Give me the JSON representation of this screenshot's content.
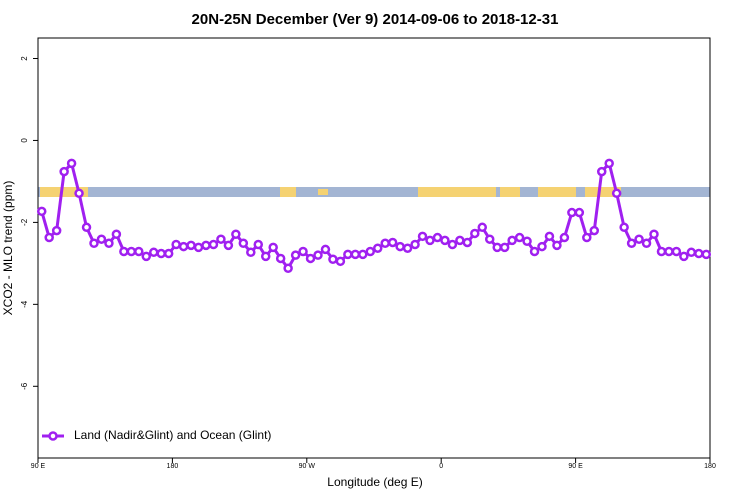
{
  "chart_data": {
    "type": "line",
    "title": "20N-25N December (Ver 9)   2014-09-06 to 2018-12-31",
    "x_label": "Longitude (deg E)",
    "y_label": "XCO2 - MLO trend (ppm)",
    "xlim": [
      90,
      540
    ],
    "xticks": [
      {
        "value": 90,
        "label": "90 E"
      },
      180,
      {
        "value": 270,
        "label": "90 W"
      },
      {
        "value": 360,
        "label": "0"
      },
      {
        "value": 450,
        "label": "90 E"
      },
      180
    ],
    "ylim": [
      -7.75,
      2.5
    ],
    "yticks": [
      2,
      0,
      -2,
      -4,
      -6
    ],
    "legend_position": "bottom-left",
    "series": [
      {
        "name": "Land (Nadir&Glint) and Ocean (Glint)",
        "color": "#a020f0",
        "x": [
          92.5,
          97.5,
          102.5,
          107.5,
          112.5,
          117.5,
          122.5,
          127.5,
          132.5,
          137.5,
          142.5,
          147.5,
          152.5,
          157.5,
          162.5,
          167.5,
          172.5,
          177.5,
          182.5,
          187.5,
          192.5,
          197.5,
          202.5,
          207.5,
          212.5,
          217.5,
          222.5,
          227.5,
          232.5,
          237.5,
          242.5,
          247.5,
          252.5,
          257.5,
          262.5,
          267.5,
          272.5,
          277.5,
          282.5,
          287.5,
          292.5,
          297.5,
          302.5,
          307.5,
          312.5,
          317.5,
          322.5,
          327.5,
          332.5,
          337.5,
          342.5,
          347.5,
          352.5,
          357.5,
          362.5,
          367.5,
          372.5,
          377.5,
          382.5,
          387.5,
          392.5,
          397.5,
          402.5,
          407.5,
          412.5,
          417.5,
          422.5,
          427.5,
          432.5,
          437.5,
          442.5,
          447.5,
          452.5,
          457.5,
          462.5,
          467.5,
          472.5,
          477.5,
          482.5,
          487.5,
          492.5,
          497.5,
          502.5,
          507.5,
          512.5,
          517.5,
          522.5,
          527.5,
          532.5,
          537.5
        ],
        "values": [
          -1.73,
          -2.37,
          -2.2,
          -0.76,
          -0.56,
          -1.29,
          -2.12,
          -2.51,
          -2.41,
          -2.51,
          -2.29,
          -2.71,
          -2.71,
          -2.71,
          -2.83,
          -2.73,
          -2.76,
          -2.76,
          -2.54,
          -2.59,
          -2.56,
          -2.61,
          -2.56,
          -2.54,
          -2.41,
          -2.56,
          -2.29,
          -2.51,
          -2.73,
          -2.54,
          -2.83,
          -2.61,
          -2.88,
          -3.12,
          -2.8,
          -2.71,
          -2.88,
          -2.8,
          -2.66,
          -2.9,
          -2.95,
          -2.78,
          -2.78,
          -2.78,
          -2.71,
          -2.63,
          -2.51,
          -2.49,
          -2.59,
          -2.63,
          -2.54,
          -2.34,
          -2.44,
          -2.37,
          -2.44,
          -2.54,
          -2.44,
          -2.49,
          -2.27,
          -2.12,
          -2.41,
          -2.61,
          -2.61,
          -2.44,
          -2.37,
          -2.46,
          -2.71,
          -2.59,
          -2.34,
          -2.56,
          -2.37,
          -1.76,
          -1.76,
          -2.37,
          -2.2,
          -0.76,
          -0.56,
          -1.29,
          -2.12,
          -2.51,
          -2.41,
          -2.51,
          -2.29,
          -2.71,
          -2.71,
          -2.71,
          -2.83,
          -2.73,
          -2.76,
          -2.78
        ]
      }
    ]
  }
}
